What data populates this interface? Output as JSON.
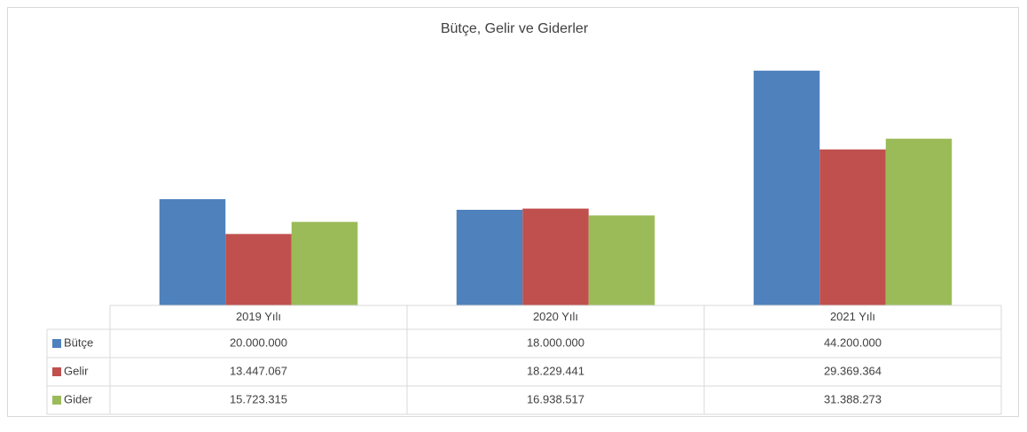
{
  "chart_data": {
    "type": "bar",
    "title": "Bütçe, Gelir ve Giderler",
    "categories": [
      "2019 Yılı",
      "2020 Yılı",
      "2021 Yılı"
    ],
    "series": [
      {
        "name": "Bütçe",
        "color": "#4f81bd",
        "values": [
          20000000,
          18000000,
          44200000
        ],
        "value_labels": [
          "20.000.000",
          "18.000.000",
          "44.200.000"
        ]
      },
      {
        "name": "Gelir",
        "color": "#c0504d",
        "values": [
          13447067,
          18229441,
          29369364
        ],
        "value_labels": [
          "13.447.067",
          "18.229.441",
          "29.369.364"
        ]
      },
      {
        "name": "Gider",
        "color": "#9bbb59",
        "values": [
          15723315,
          16938517,
          31388273
        ],
        "value_labels": [
          "15.723.315",
          "16.938.517",
          "31.388.273"
        ]
      }
    ],
    "ylim": [
      0,
      50000000
    ]
  }
}
